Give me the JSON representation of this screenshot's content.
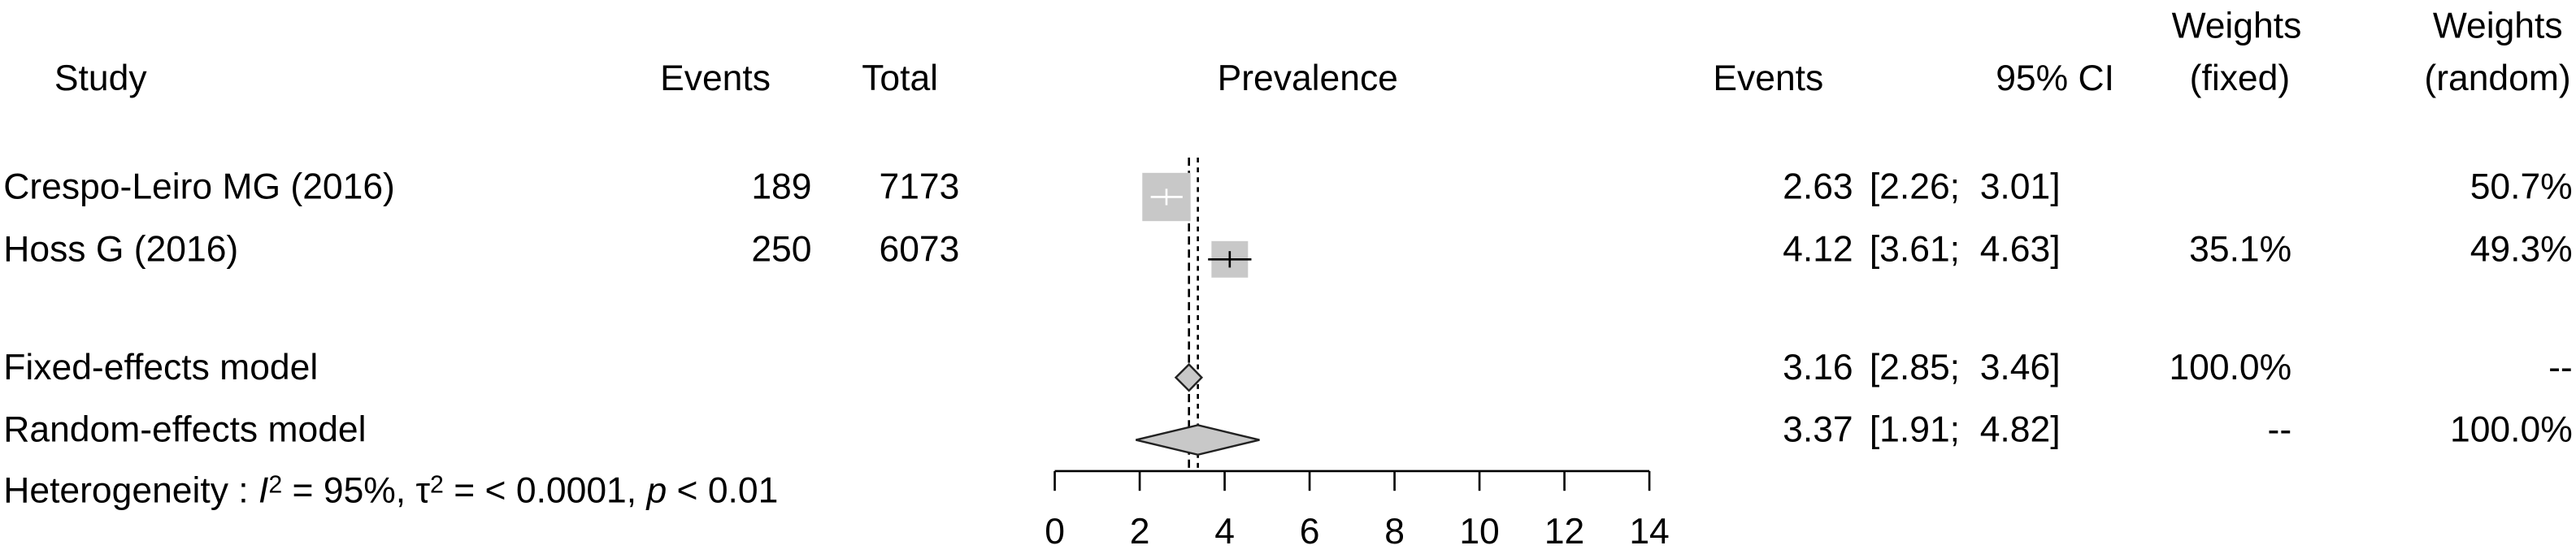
{
  "chart_data": {
    "type": "forest",
    "columns": {
      "study": "Study",
      "events": "Events",
      "total": "Total",
      "plot": "Prevalence",
      "estimate": "Events",
      "ci": "95% CI",
      "weight_fixed": [
        "Weights",
        "(fixed)"
      ],
      "weight_random": [
        "Weights",
        "(random)"
      ]
    },
    "studies": [
      {
        "name": "Crespo-Leiro MG (2016)",
        "events": 189,
        "total": 7173,
        "estimate": 2.63,
        "ci": [
          2.26,
          3.01
        ],
        "ci_label": "[2.26;  3.01]",
        "weight_fixed": null,
        "weight_fixed_label": null,
        "weight_random": 50.7,
        "weight_random_label": "50.7%"
      },
      {
        "name": "Hoss G (2016)",
        "events": 250,
        "total": 6073,
        "estimate": 4.12,
        "ci": [
          3.61,
          4.63
        ],
        "ci_label": "[3.61;  4.63]",
        "weight_fixed": 35.1,
        "weight_fixed_label": "35.1%",
        "weight_random": 49.3,
        "weight_random_label": "49.3%"
      }
    ],
    "models": [
      {
        "name": "Fixed-effects model",
        "estimate": 3.16,
        "ci": [
          2.85,
          3.46
        ],
        "ci_label": "[2.85;  3.46]",
        "weight_fixed": 100.0,
        "weight_fixed_label": "100.0%",
        "weight_random": null,
        "weight_random_label": "--"
      },
      {
        "name": "Random-effects model",
        "estimate": 3.37,
        "ci": [
          1.91,
          4.82
        ],
        "ci_label": "[1.91;  4.82]",
        "weight_fixed": null,
        "weight_fixed_label": "--",
        "weight_random": 100.0,
        "weight_random_label": "100.0%"
      }
    ],
    "heterogeneity": [
      {
        "text": "Heterogeneity : ",
        "style": "normal"
      },
      {
        "text": "I",
        "style": "italic"
      },
      {
        "text": "2",
        "style": "sup"
      },
      {
        "text": " = 95%, ",
        "style": "normal"
      },
      {
        "text": "τ",
        "style": "normal"
      },
      {
        "text": "2",
        "style": "sup"
      },
      {
        "text": " = < 0.0001, ",
        "style": "normal"
      },
      {
        "text": "p",
        "style": "italic"
      },
      {
        "text": " < 0.01",
        "style": "normal"
      }
    ],
    "xlim": [
      0,
      14
    ],
    "xticks": [
      0,
      2,
      4,
      6,
      8,
      10,
      12,
      14
    ],
    "square_color": "#c8c8c8",
    "diamond_color": "#c8c8c8"
  }
}
